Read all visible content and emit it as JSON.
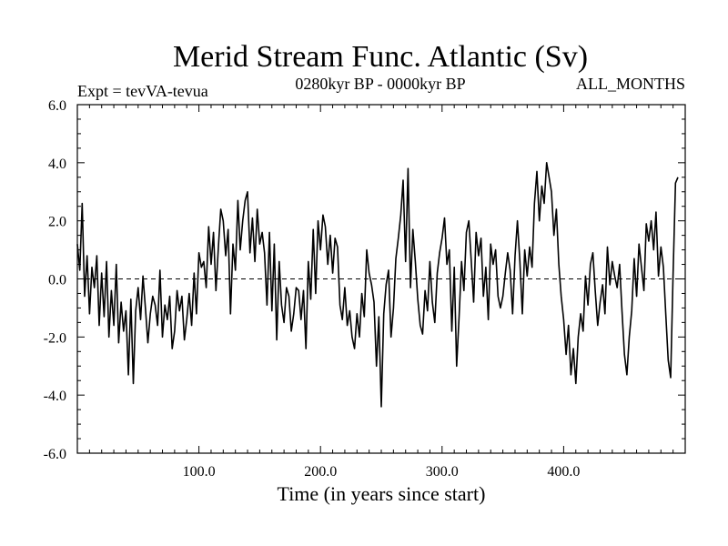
{
  "chart_data": {
    "type": "line",
    "title": "Merid Stream Func. Atlantic (Sv)",
    "subtitle_left": "Expt = tevVA-tevua",
    "subtitle_center": "0280kyr BP - 0000kyr BP",
    "subtitle_right": "ALL_MONTHS",
    "xlabel": "Time (in years since start)",
    "ylabel": "",
    "xlim": [
      0,
      500
    ],
    "ylim": [
      -6,
      6
    ],
    "x_ticks": [
      100,
      200,
      300,
      400
    ],
    "x_tick_labels": [
      "100.0",
      "200.0",
      "300.0",
      "400.0"
    ],
    "y_ticks": [
      -6,
      -4,
      -2,
      0,
      2,
      4,
      6
    ],
    "y_tick_labels": [
      "-6.0",
      "-4.0",
      "-2.0",
      "0.0",
      "2.0",
      "4.0",
      "6.0"
    ],
    "reference_line": 0,
    "grid": false,
    "series": [
      {
        "name": "Merid Stream Func. Atlantic",
        "x_start": 0,
        "x_step": 2,
        "values": [
          1.2,
          0.3,
          2.6,
          -0.6,
          0.8,
          -1.2,
          0.4,
          -0.3,
          0.8,
          -1.6,
          0.2,
          -1.3,
          0.6,
          -2.0,
          -0.4,
          -1.6,
          0.5,
          -2.2,
          -0.8,
          -1.8,
          -1.1,
          -3.3,
          -0.7,
          -3.6,
          -1.1,
          -0.3,
          -1.4,
          0.1,
          -1.0,
          -2.2,
          -1.2,
          -0.6,
          -0.9,
          -1.6,
          0.3,
          -2.0,
          -0.9,
          -1.4,
          -0.6,
          -2.4,
          -1.8,
          -0.4,
          -1.1,
          -0.6,
          -2.1,
          -1.4,
          -0.5,
          -1.6,
          0.2,
          -1.2,
          0.9,
          0.4,
          0.6,
          -0.3,
          1.8,
          0.5,
          1.6,
          -0.4,
          1.1,
          2.4,
          2.0,
          0.8,
          1.7,
          -1.2,
          1.2,
          0.3,
          2.7,
          1.0,
          2.0,
          2.7,
          3.0,
          0.9,
          2.1,
          0.6,
          2.4,
          1.2,
          1.6,
          0.9,
          -0.9,
          1.6,
          -1.1,
          1.2,
          -2.1,
          0.6,
          -0.9,
          -1.5,
          -0.3,
          -0.6,
          -1.8,
          -1.2,
          -0.3,
          -0.4,
          -1.4,
          -0.4,
          -2.4,
          0.6,
          -0.7,
          1.7,
          -0.5,
          2.0,
          1.0,
          2.2,
          1.8,
          0.5,
          1.5,
          0.2,
          1.4,
          1.1,
          -0.9,
          -1.4,
          -0.3,
          -1.6,
          -1.1,
          -2.0,
          -2.4,
          -1.2,
          -2.0,
          -0.5,
          -1.3,
          1.0,
          0.2,
          -0.2,
          -0.8,
          -3.0,
          -1.3,
          -4.4,
          -1.2,
          -0.2,
          0.3,
          -2.0,
          -1.0,
          0.7,
          1.4,
          2.2,
          3.4,
          0.6,
          3.8,
          -0.3,
          1.7,
          0.6,
          -0.7,
          -1.6,
          -1.9,
          -0.4,
          -1.1,
          0.6,
          -0.8,
          -1.5,
          0.2,
          0.9,
          1.4,
          2.1,
          0.5,
          1.0,
          -1.8,
          0.4,
          -3.0,
          -1.3,
          0.6,
          -0.4,
          1.6,
          2.0,
          0.6,
          -0.8,
          1.6,
          0.8,
          1.4,
          -0.6,
          0.4,
          -1.4,
          1.2,
          0.5,
          1.0,
          -0.6,
          -1.0,
          -0.6,
          0.2,
          0.9,
          0.3,
          -1.2,
          0.8,
          2.0,
          0.6,
          -1.2,
          1.0,
          0.1,
          1.1,
          0.4,
          2.6,
          3.7,
          2.0,
          3.2,
          2.6,
          4.0,
          3.5,
          3.0,
          1.5,
          2.4,
          0.5,
          -0.6,
          -1.4,
          -2.6,
          -1.6,
          -3.3,
          -2.4,
          -3.6,
          -2.0,
          -1.2,
          -1.8,
          0.1,
          -0.9,
          0.5,
          0.9,
          -0.4,
          -1.6,
          -0.8,
          -0.2,
          -1.2,
          1.1,
          -0.2,
          0.6,
          0.1,
          -0.3,
          0.5,
          -1.1,
          -2.6,
          -3.3,
          -2.0,
          -1.1,
          0.7,
          -0.6,
          1.2,
          0.4,
          -0.4,
          1.9,
          1.3,
          2.0,
          1.0,
          2.3,
          0.1,
          1.1,
          0.4,
          -1.2,
          -2.8,
          -3.4,
          0.1,
          3.3,
          3.5
        ]
      }
    ]
  }
}
